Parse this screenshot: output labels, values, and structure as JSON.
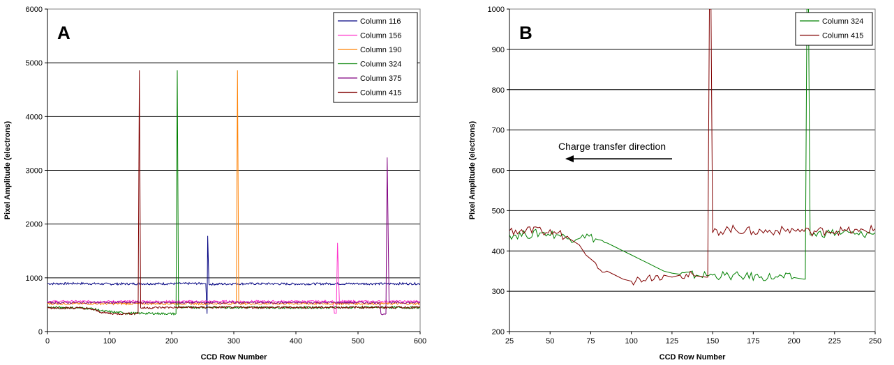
{
  "chart_data": [
    {
      "type": "line",
      "panel_label": "A",
      "xlabel": "CCD Row Number",
      "ylabel": "Pixel Amplitude (electrons)",
      "xlim": [
        0,
        600
      ],
      "ylim": [
        0,
        6000
      ],
      "xticks": [
        0,
        100,
        200,
        300,
        400,
        500,
        600
      ],
      "yticks": [
        0,
        1000,
        2000,
        3000,
        4000,
        5000,
        6000
      ],
      "grid": "horizontal",
      "legend": "top-right",
      "series": [
        {
          "name": "Column 116",
          "color": "#000080",
          "points": [
            [
              0,
              890
            ],
            [
              50,
              895
            ],
            [
              100,
              885
            ],
            [
              150,
              890
            ],
            [
              200,
              890
            ],
            [
              250,
              895
            ],
            [
              255,
              890
            ],
            [
              257,
              330
            ],
            [
              258,
              1780
            ],
            [
              260,
              880
            ],
            [
              300,
              890
            ],
            [
              350,
              890
            ],
            [
              400,
              885
            ],
            [
              450,
              890
            ],
            [
              500,
              890
            ],
            [
              550,
              890
            ],
            [
              600,
              890
            ]
          ]
        },
        {
          "name": "Column 156",
          "color": "#ff33cc",
          "points": [
            [
              0,
              560
            ],
            [
              100,
              560
            ],
            [
              200,
              560
            ],
            [
              300,
              560
            ],
            [
              400,
              560
            ],
            [
              460,
              560
            ],
            [
              462,
              340
            ],
            [
              465,
              340
            ],
            [
              467,
              1650
            ],
            [
              470,
              560
            ],
            [
              500,
              560
            ],
            [
              600,
              560
            ]
          ]
        },
        {
          "name": "Column 190",
          "color": "#ff8000",
          "points": [
            [
              0,
              520
            ],
            [
              100,
              520
            ],
            [
              200,
              520
            ],
            [
              300,
              520
            ],
            [
              304,
              520
            ],
            [
              306,
              4860
            ],
            [
              308,
              520
            ],
            [
              400,
              520
            ],
            [
              500,
              520
            ],
            [
              600,
              520
            ]
          ]
        },
        {
          "name": "Column 324",
          "color": "#008000",
          "points": [
            [
              0,
              450
            ],
            [
              50,
              440
            ],
            [
              70,
              430
            ],
            [
              90,
              380
            ],
            [
              110,
              360
            ],
            [
              130,
              340
            ],
            [
              150,
              340
            ],
            [
              180,
              335
            ],
            [
              207,
              330
            ],
            [
              209,
              4860
            ],
            [
              211,
              450
            ],
            [
              300,
              450
            ],
            [
              400,
              445
            ],
            [
              500,
              450
            ],
            [
              600,
              445
            ]
          ]
        },
        {
          "name": "Column 375",
          "color": "#800080",
          "points": [
            [
              0,
              540
            ],
            [
              100,
              540
            ],
            [
              200,
              540
            ],
            [
              300,
              540
            ],
            [
              400,
              540
            ],
            [
              500,
              540
            ],
            [
              535,
              540
            ],
            [
              537,
              330
            ],
            [
              545,
              330
            ],
            [
              547,
              3240
            ],
            [
              550,
              540
            ],
            [
              600,
              540
            ]
          ]
        },
        {
          "name": "Column 415",
          "color": "#800000",
          "points": [
            [
              0,
              440
            ],
            [
              50,
              440
            ],
            [
              70,
              420
            ],
            [
              90,
              350
            ],
            [
              110,
              330
            ],
            [
              130,
              335
            ],
            [
              146,
              335
            ],
            [
              148,
              4860
            ],
            [
              150,
              440
            ],
            [
              200,
              450
            ],
            [
              300,
              450
            ],
            [
              400,
              450
            ],
            [
              500,
              450
            ],
            [
              600,
              450
            ]
          ]
        }
      ]
    },
    {
      "type": "line",
      "panel_label": "B",
      "xlabel": "CCD Row Number",
      "ylabel": "Pixel Amplitude (electrons)",
      "xlim": [
        25,
        250
      ],
      "ylim": [
        200,
        1000
      ],
      "xticks": [
        25,
        50,
        75,
        100,
        125,
        150,
        175,
        200,
        225,
        250
      ],
      "yticks": [
        200,
        300,
        400,
        500,
        600,
        700,
        800,
        900,
        1000
      ],
      "grid": "horizontal",
      "legend": "top-right",
      "annotation": "Charge transfer direction",
      "series": [
        {
          "name": "Column 324",
          "color": "#008000",
          "points": [
            [
              25,
              440
            ],
            [
              35,
              440
            ],
            [
              45,
              445
            ],
            [
              55,
              440
            ],
            [
              62,
              430
            ],
            [
              70,
              440
            ],
            [
              78,
              430
            ],
            [
              85,
              420
            ],
            [
              90,
              410
            ],
            [
              95,
              400
            ],
            [
              100,
              390
            ],
            [
              105,
              380
            ],
            [
              110,
              370
            ],
            [
              115,
              360
            ],
            [
              120,
              350
            ],
            [
              125,
              345
            ],
            [
              130,
              342
            ],
            [
              140,
              340
            ],
            [
              150,
              340
            ],
            [
              160,
              338
            ],
            [
              170,
              337
            ],
            [
              180,
              336
            ],
            [
              190,
              335
            ],
            [
              200,
              334
            ],
            [
              206,
              330
            ],
            [
              207,
              330
            ],
            [
              208,
              1000
            ],
            [
              209,
              1000
            ],
            [
              210,
              440
            ],
            [
              220,
              445
            ],
            [
              230,
              445
            ],
            [
              240,
              440
            ],
            [
              250,
              445
            ]
          ]
        },
        {
          "name": "Column 415",
          "color": "#800000",
          "points": [
            [
              25,
              450
            ],
            [
              35,
              450
            ],
            [
              45,
              448
            ],
            [
              55,
              445
            ],
            [
              62,
              430
            ],
            [
              68,
              415
            ],
            [
              72,
              390
            ],
            [
              78,
              370
            ],
            [
              85,
              350
            ],
            [
              90,
              340
            ],
            [
              95,
              330
            ],
            [
              100,
              325
            ],
            [
              110,
              335
            ],
            [
              120,
              340
            ],
            [
              125,
              335
            ],
            [
              130,
              340
            ],
            [
              140,
              338
            ],
            [
              146,
              335
            ],
            [
              147,
              335
            ],
            [
              148,
              1000
            ],
            [
              149,
              1000
            ],
            [
              150,
              445
            ],
            [
              160,
              455
            ],
            [
              175,
              448
            ],
            [
              190,
              450
            ],
            [
              200,
              452
            ],
            [
              210,
              448
            ],
            [
              220,
              450
            ],
            [
              230,
              450
            ],
            [
              240,
              448
            ],
            [
              250,
              455
            ]
          ]
        }
      ]
    }
  ]
}
